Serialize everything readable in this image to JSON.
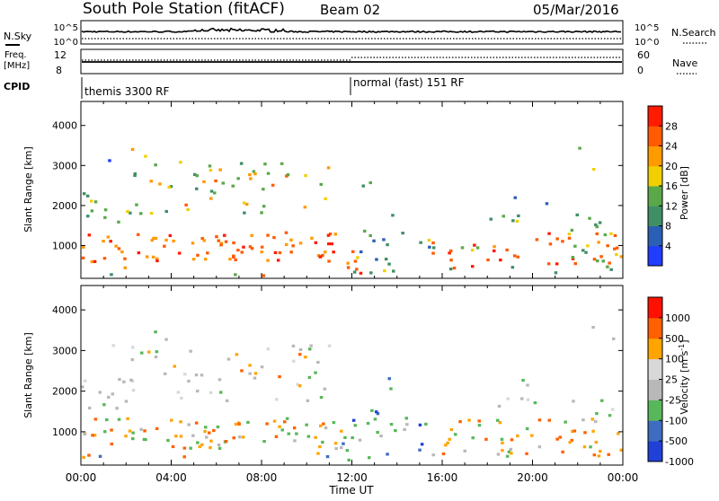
{
  "header": {
    "title": "South Pole Station (fitACF)",
    "beam": "Beam 02",
    "date": "05/Mar/2016"
  },
  "top_panels": {
    "nsky_label": "N.Sky",
    "nsky_ticks": [
      "10^5",
      "10^0"
    ],
    "nsearch_label": "N.Search",
    "nsearch_ticks": [
      "10^5",
      "10^0"
    ],
    "freq_label_line1": "Freq.",
    "freq_label_line2": "[MHz]",
    "freq_ticks": [
      "12",
      "8"
    ],
    "nave_label": "Nave",
    "nave_ticks": [
      "60",
      "0"
    ],
    "cpid_label": "CPID",
    "cpid_modes": [
      {
        "name": "themis 3300 RF",
        "start_hour": 0
      },
      {
        "name": "normal (fast) 151 RF",
        "start_hour": 12
      }
    ]
  },
  "colors": {
    "power_scale": [
      "#1f3cff",
      "#2a5fb5",
      "#3f8f66",
      "#5ba84a",
      "#f0d000",
      "#ff9a00",
      "#ff5a00",
      "#ff1a00"
    ],
    "velocity_scale": [
      "#2040d8",
      "#3d6cc0",
      "#58b75a",
      "#b8b8b8",
      "#d8d8d8",
      "#ffa400",
      "#ff6000",
      "#ff1000"
    ]
  },
  "chart_data": [
    {
      "type": "heatmap",
      "title": "Power",
      "ylabel": "Slant Range [km]",
      "xlabel": "",
      "ylim": [
        180,
        4600
      ],
      "yticks": [
        "1000",
        "2000",
        "3000",
        "4000"
      ],
      "xticks": [
        "00:00",
        "04:00",
        "08:00",
        "12:00",
        "16:00",
        "20:00",
        "00:00"
      ],
      "colorbar": {
        "label": "Power [dB]",
        "ticks": [
          "4",
          "8",
          "12",
          "16",
          "20",
          "24",
          "28"
        ],
        "range": [
          0,
          30
        ]
      }
    },
    {
      "type": "heatmap",
      "title": "Velocity",
      "ylabel": "Slant Range [km]",
      "xlabel": "Time UT",
      "ylim": [
        180,
        4600
      ],
      "yticks": [
        "1000",
        "2000",
        "3000",
        "4000"
      ],
      "xticks": [
        "00:00",
        "04:00",
        "08:00",
        "12:00",
        "16:00",
        "20:00",
        "00:00"
      ],
      "colorbar": {
        "label": "Velocity [m s^-1]",
        "ticks": [
          "1000",
          "500",
          "100",
          "25",
          "-25",
          "-100",
          "-500",
          "-1000"
        ]
      }
    }
  ]
}
